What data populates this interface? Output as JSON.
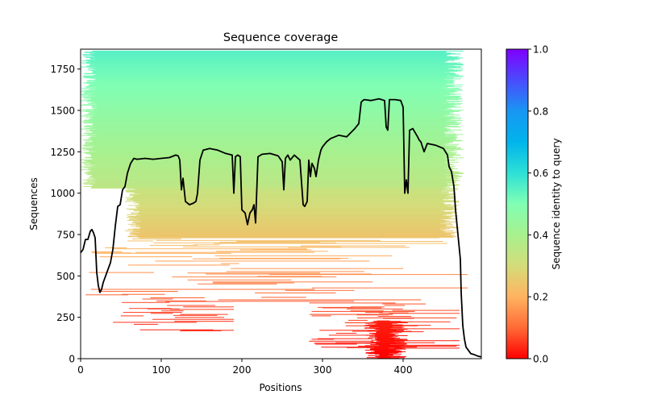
{
  "chart_data": {
    "type": "heatmap",
    "title": "Sequence coverage",
    "xlabel": "Positions",
    "ylabel": "Sequences",
    "xlim": [
      0,
      497
    ],
    "ylim": [
      0,
      1870
    ],
    "xticks": [
      0,
      100,
      200,
      300,
      400
    ],
    "yticks": [
      0,
      250,
      500,
      750,
      1000,
      1250,
      1500,
      1750
    ],
    "grid": false,
    "colorbar": {
      "label": "Sequence identity to query",
      "range": [
        0,
        1
      ],
      "ticks": [
        "0.0",
        "0.2",
        "0.4",
        "0.6",
        "0.8",
        "1.0"
      ],
      "colormap": "rainbow_r",
      "stops": [
        "#ff0000",
        "#ff6a36",
        "#ffb360",
        "#d4dc7a",
        "#a8f08e",
        "#80ffb4",
        "#2ee0d6",
        "#00b4eb",
        "#1996f3",
        "#4a4bfc",
        "#8000ff"
      ]
    },
    "alignment_bands": [
      {
        "seq_from": 1030,
        "seq_to": 1860,
        "pos_from": 0,
        "pos_to": 475,
        "identity_from": 0.35,
        "identity_to": 0.55,
        "density": 0.92
      },
      {
        "seq_from": 730,
        "seq_to": 1030,
        "pos_from": 55,
        "pos_to": 470,
        "identity_from": 0.24,
        "identity_to": 0.33,
        "density": 0.9
      },
      {
        "seq_from": 600,
        "seq_to": 730,
        "pos_from": 10,
        "pos_to": 470,
        "identity_from": 0.18,
        "identity_to": 0.24,
        "density": 0.55
      },
      {
        "seq_from": 340,
        "seq_to": 600,
        "pos_from": 0,
        "pos_to": 480,
        "identity_from": 0.08,
        "identity_to": 0.18,
        "density": 0.4
      },
      {
        "seq_from": 150,
        "seq_to": 380,
        "pos_from": 40,
        "pos_to": 190,
        "identity_from": 0.03,
        "identity_to": 0.08,
        "density": 0.3
      },
      {
        "seq_from": 60,
        "seq_to": 340,
        "pos_from": 280,
        "pos_to": 470,
        "identity_from": 0.02,
        "identity_to": 0.08,
        "density": 0.45
      },
      {
        "seq_from": 0,
        "seq_to": 230,
        "pos_from": 351,
        "pos_to": 406,
        "identity_from": 0.0,
        "identity_to": 0.03,
        "density": 1.0
      }
    ],
    "coverage_line": {
      "name": "coverage",
      "color": "#000000",
      "x": [
        0,
        3,
        6,
        9,
        12,
        14,
        16,
        18,
        20,
        22,
        24,
        26,
        28,
        31,
        34,
        37,
        40,
        43,
        46,
        49,
        52,
        55,
        58,
        62,
        66,
        70,
        80,
        90,
        100,
        110,
        118,
        121,
        123,
        125,
        127,
        130,
        135,
        140,
        143,
        145,
        148,
        152,
        160,
        170,
        180,
        188,
        190,
        192,
        195,
        198,
        200,
        204,
        207,
        210,
        213,
        215,
        217,
        220,
        225,
        235,
        245,
        250,
        252,
        254,
        257,
        260,
        265,
        272,
        276,
        278,
        281,
        283,
        285,
        287,
        290,
        292,
        295,
        298,
        300,
        305,
        310,
        320,
        330,
        340,
        345,
        348,
        350,
        352,
        360,
        370,
        377,
        379,
        381,
        383,
        390,
        397,
        400,
        402,
        404,
        406,
        408,
        412,
        418,
        420,
        422,
        426,
        430,
        440,
        450,
        455,
        457,
        460,
        463,
        465,
        467,
        469,
        471,
        472,
        474,
        476,
        478,
        481,
        484,
        488,
        493,
        497
      ],
      "y": [
        640,
        660,
        720,
        720,
        770,
        780,
        760,
        730,
        520,
        440,
        400,
        420,
        460,
        500,
        540,
        580,
        660,
        800,
        920,
        930,
        1020,
        1040,
        1120,
        1180,
        1210,
        1205,
        1210,
        1205,
        1210,
        1215,
        1230,
        1225,
        1200,
        1020,
        1090,
        950,
        930,
        940,
        950,
        1000,
        1200,
        1260,
        1270,
        1260,
        1240,
        1230,
        1000,
        1220,
        1230,
        1220,
        900,
        880,
        810,
        880,
        900,
        930,
        820,
        1220,
        1235,
        1240,
        1225,
        1190,
        1020,
        1210,
        1230,
        1200,
        1230,
        1200,
        930,
        920,
        950,
        1200,
        1100,
        1180,
        1150,
        1100,
        1200,
        1260,
        1280,
        1310,
        1330,
        1350,
        1340,
        1390,
        1420,
        1550,
        1560,
        1565,
        1560,
        1570,
        1560,
        1400,
        1380,
        1565,
        1565,
        1560,
        1520,
        1000,
        1080,
        1000,
        1380,
        1390,
        1340,
        1320,
        1310,
        1250,
        1300,
        1290,
        1270,
        1230,
        1160,
        1130,
        1040,
        900,
        800,
        700,
        600,
        400,
        200,
        120,
        70,
        50,
        30,
        25,
        15,
        10
      ]
    }
  }
}
